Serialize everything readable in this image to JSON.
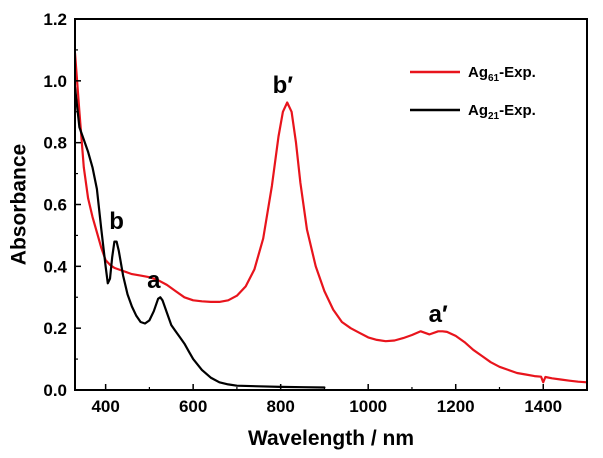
{
  "chart_data": {
    "type": "line",
    "xlabel": "Wavelength / nm",
    "ylabel": "Absorbance",
    "xlim": [
      330,
      1500
    ],
    "ylim": [
      0.0,
      1.2
    ],
    "x_ticks": [
      400,
      600,
      800,
      1000,
      1200,
      1400
    ],
    "x_tick_labels": [
      "400",
      "600",
      "800",
      "1000",
      "1200",
      "1400"
    ],
    "y_ticks": [
      0.0,
      0.2,
      0.4,
      0.6,
      0.8,
      1.0,
      1.2
    ],
    "y_tick_labels": [
      "0.0",
      "0.2",
      "0.4",
      "0.6",
      "0.8",
      "1.0",
      "1.2"
    ],
    "grid": false,
    "legend_position": "top-right",
    "series": [
      {
        "name": "Ag61-Exp.",
        "legend_base": "Ag",
        "legend_sub": "61",
        "legend_suffix": "-Exp.",
        "color": "#e8141c",
        "points": [
          [
            330,
            1.09
          ],
          [
            340,
            0.9
          ],
          [
            350,
            0.72
          ],
          [
            360,
            0.62
          ],
          [
            370,
            0.56
          ],
          [
            380,
            0.51
          ],
          [
            390,
            0.46
          ],
          [
            400,
            0.42
          ],
          [
            410,
            0.405
          ],
          [
            420,
            0.395
          ],
          [
            440,
            0.385
          ],
          [
            460,
            0.375
          ],
          [
            480,
            0.37
          ],
          [
            500,
            0.365
          ],
          [
            520,
            0.355
          ],
          [
            540,
            0.34
          ],
          [
            560,
            0.32
          ],
          [
            580,
            0.3
          ],
          [
            600,
            0.29
          ],
          [
            620,
            0.287
          ],
          [
            640,
            0.285
          ],
          [
            660,
            0.285
          ],
          [
            680,
            0.29
          ],
          [
            700,
            0.305
          ],
          [
            720,
            0.335
          ],
          [
            740,
            0.39
          ],
          [
            760,
            0.49
          ],
          [
            780,
            0.66
          ],
          [
            795,
            0.82
          ],
          [
            805,
            0.9
          ],
          [
            815,
            0.93
          ],
          [
            825,
            0.9
          ],
          [
            835,
            0.8
          ],
          [
            845,
            0.67
          ],
          [
            860,
            0.52
          ],
          [
            880,
            0.4
          ],
          [
            900,
            0.32
          ],
          [
            920,
            0.26
          ],
          [
            940,
            0.22
          ],
          [
            960,
            0.2
          ],
          [
            980,
            0.185
          ],
          [
            1000,
            0.17
          ],
          [
            1020,
            0.162
          ],
          [
            1040,
            0.158
          ],
          [
            1060,
            0.16
          ],
          [
            1080,
            0.168
          ],
          [
            1100,
            0.178
          ],
          [
            1120,
            0.19
          ],
          [
            1140,
            0.18
          ],
          [
            1160,
            0.19
          ],
          [
            1170,
            0.19
          ],
          [
            1180,
            0.188
          ],
          [
            1200,
            0.175
          ],
          [
            1220,
            0.155
          ],
          [
            1240,
            0.13
          ],
          [
            1260,
            0.11
          ],
          [
            1280,
            0.09
          ],
          [
            1300,
            0.075
          ],
          [
            1320,
            0.065
          ],
          [
            1340,
            0.055
          ],
          [
            1360,
            0.05
          ],
          [
            1380,
            0.045
          ],
          [
            1395,
            0.043
          ],
          [
            1400,
            0.025
          ],
          [
            1405,
            0.042
          ],
          [
            1420,
            0.038
          ],
          [
            1440,
            0.034
          ],
          [
            1460,
            0.03
          ],
          [
            1480,
            0.027
          ],
          [
            1500,
            0.025
          ]
        ]
      },
      {
        "name": "Ag21-Exp.",
        "legend_base": "Ag",
        "legend_sub": "21",
        "legend_suffix": "-Exp.",
        "color": "#000000",
        "points": [
          [
            330,
            0.98
          ],
          [
            340,
            0.85
          ],
          [
            350,
            0.81
          ],
          [
            360,
            0.77
          ],
          [
            370,
            0.72
          ],
          [
            380,
            0.65
          ],
          [
            390,
            0.52
          ],
          [
            400,
            0.4
          ],
          [
            405,
            0.345
          ],
          [
            410,
            0.36
          ],
          [
            415,
            0.43
          ],
          [
            420,
            0.48
          ],
          [
            425,
            0.48
          ],
          [
            430,
            0.45
          ],
          [
            440,
            0.37
          ],
          [
            450,
            0.31
          ],
          [
            460,
            0.27
          ],
          [
            470,
            0.24
          ],
          [
            480,
            0.22
          ],
          [
            490,
            0.215
          ],
          [
            500,
            0.225
          ],
          [
            510,
            0.255
          ],
          [
            520,
            0.295
          ],
          [
            525,
            0.3
          ],
          [
            530,
            0.29
          ],
          [
            540,
            0.25
          ],
          [
            550,
            0.21
          ],
          [
            560,
            0.19
          ],
          [
            570,
            0.17
          ],
          [
            580,
            0.15
          ],
          [
            590,
            0.125
          ],
          [
            600,
            0.1
          ],
          [
            620,
            0.065
          ],
          [
            640,
            0.04
          ],
          [
            660,
            0.025
          ],
          [
            680,
            0.018
          ],
          [
            700,
            0.014
          ],
          [
            750,
            0.012
          ],
          [
            800,
            0.01
          ],
          [
            850,
            0.009
          ],
          [
            900,
            0.008
          ]
        ]
      }
    ],
    "annotations": [
      {
        "text": "b",
        "x": 425,
        "y": 0.52
      },
      {
        "text": "a",
        "x": 510,
        "y": 0.33
      },
      {
        "text": "b′",
        "x": 805,
        "y": 0.96
      },
      {
        "text": "a′",
        "x": 1160,
        "y": 0.22
      }
    ]
  }
}
